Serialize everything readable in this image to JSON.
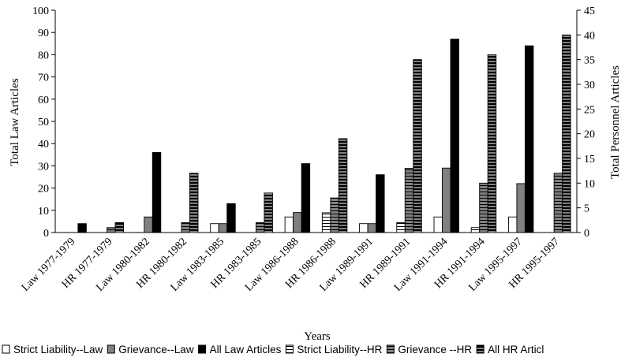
{
  "chart_data": {
    "type": "bar",
    "title": "",
    "xlabel": "Years",
    "ylabel_left": "Total Law Articles",
    "ylabel_right": "Total Personnel Articles",
    "ylim_left": [
      0,
      100
    ],
    "ylim_right": [
      0,
      45
    ],
    "yticks_left": [
      0,
      10,
      20,
      30,
      40,
      50,
      60,
      70,
      80,
      90,
      100
    ],
    "yticks_right": [
      0,
      5,
      10,
      15,
      20,
      25,
      30,
      35,
      40,
      45
    ],
    "grid": false,
    "legend_position": "bottom",
    "categories": [
      "Law 1977-1979",
      "HR 1977-1979",
      "Law 1980-1982",
      "HR 1980-1982",
      "Law 1983-1985",
      "HR 1983-1985",
      "Law 1986-1988",
      "HR 1986-1988",
      "Law 1989-1991",
      "HR 1989-1991",
      "Law 1991-1994",
      "HR 1991-1994",
      "Law 1995-1997",
      "HR 1995-1997"
    ],
    "series": [
      {
        "name": "Strict Liability--Law",
        "axis": "left",
        "fill": "white",
        "values": [
          0,
          null,
          0,
          null,
          4,
          null,
          7,
          null,
          4,
          null,
          7,
          null,
          7,
          null
        ]
      },
      {
        "name": "Grievance--Law",
        "axis": "left",
        "fill": "gray",
        "values": [
          0,
          null,
          7,
          null,
          4,
          null,
          9,
          null,
          4,
          null,
          29,
          null,
          22,
          null
        ]
      },
      {
        "name": "All Law Articles",
        "axis": "left",
        "fill": "black",
        "values": [
          4,
          null,
          36,
          null,
          13,
          null,
          31,
          null,
          26,
          null,
          87,
          null,
          84,
          null
        ]
      },
      {
        "name": "Strict Liability--HR",
        "axis": "right",
        "fill": "white-hatch",
        "values": [
          null,
          0,
          null,
          0,
          null,
          0,
          null,
          4,
          null,
          2,
          null,
          1,
          null,
          0
        ]
      },
      {
        "name": "Grievance --HR",
        "axis": "right",
        "fill": "gray-hatch",
        "values": [
          null,
          1,
          null,
          2,
          null,
          2,
          null,
          7,
          null,
          13,
          null,
          10,
          null,
          12
        ]
      },
      {
        "name": "All HR Articl",
        "axis": "right",
        "fill": "black-hatch",
        "values": [
          null,
          2,
          null,
          12,
          null,
          8,
          null,
          19,
          null,
          35,
          null,
          36,
          null,
          40
        ]
      }
    ],
    "colors": {
      "white": "#ffffff",
      "gray": "#808080",
      "black": "#000000",
      "outline": "#000000"
    }
  }
}
